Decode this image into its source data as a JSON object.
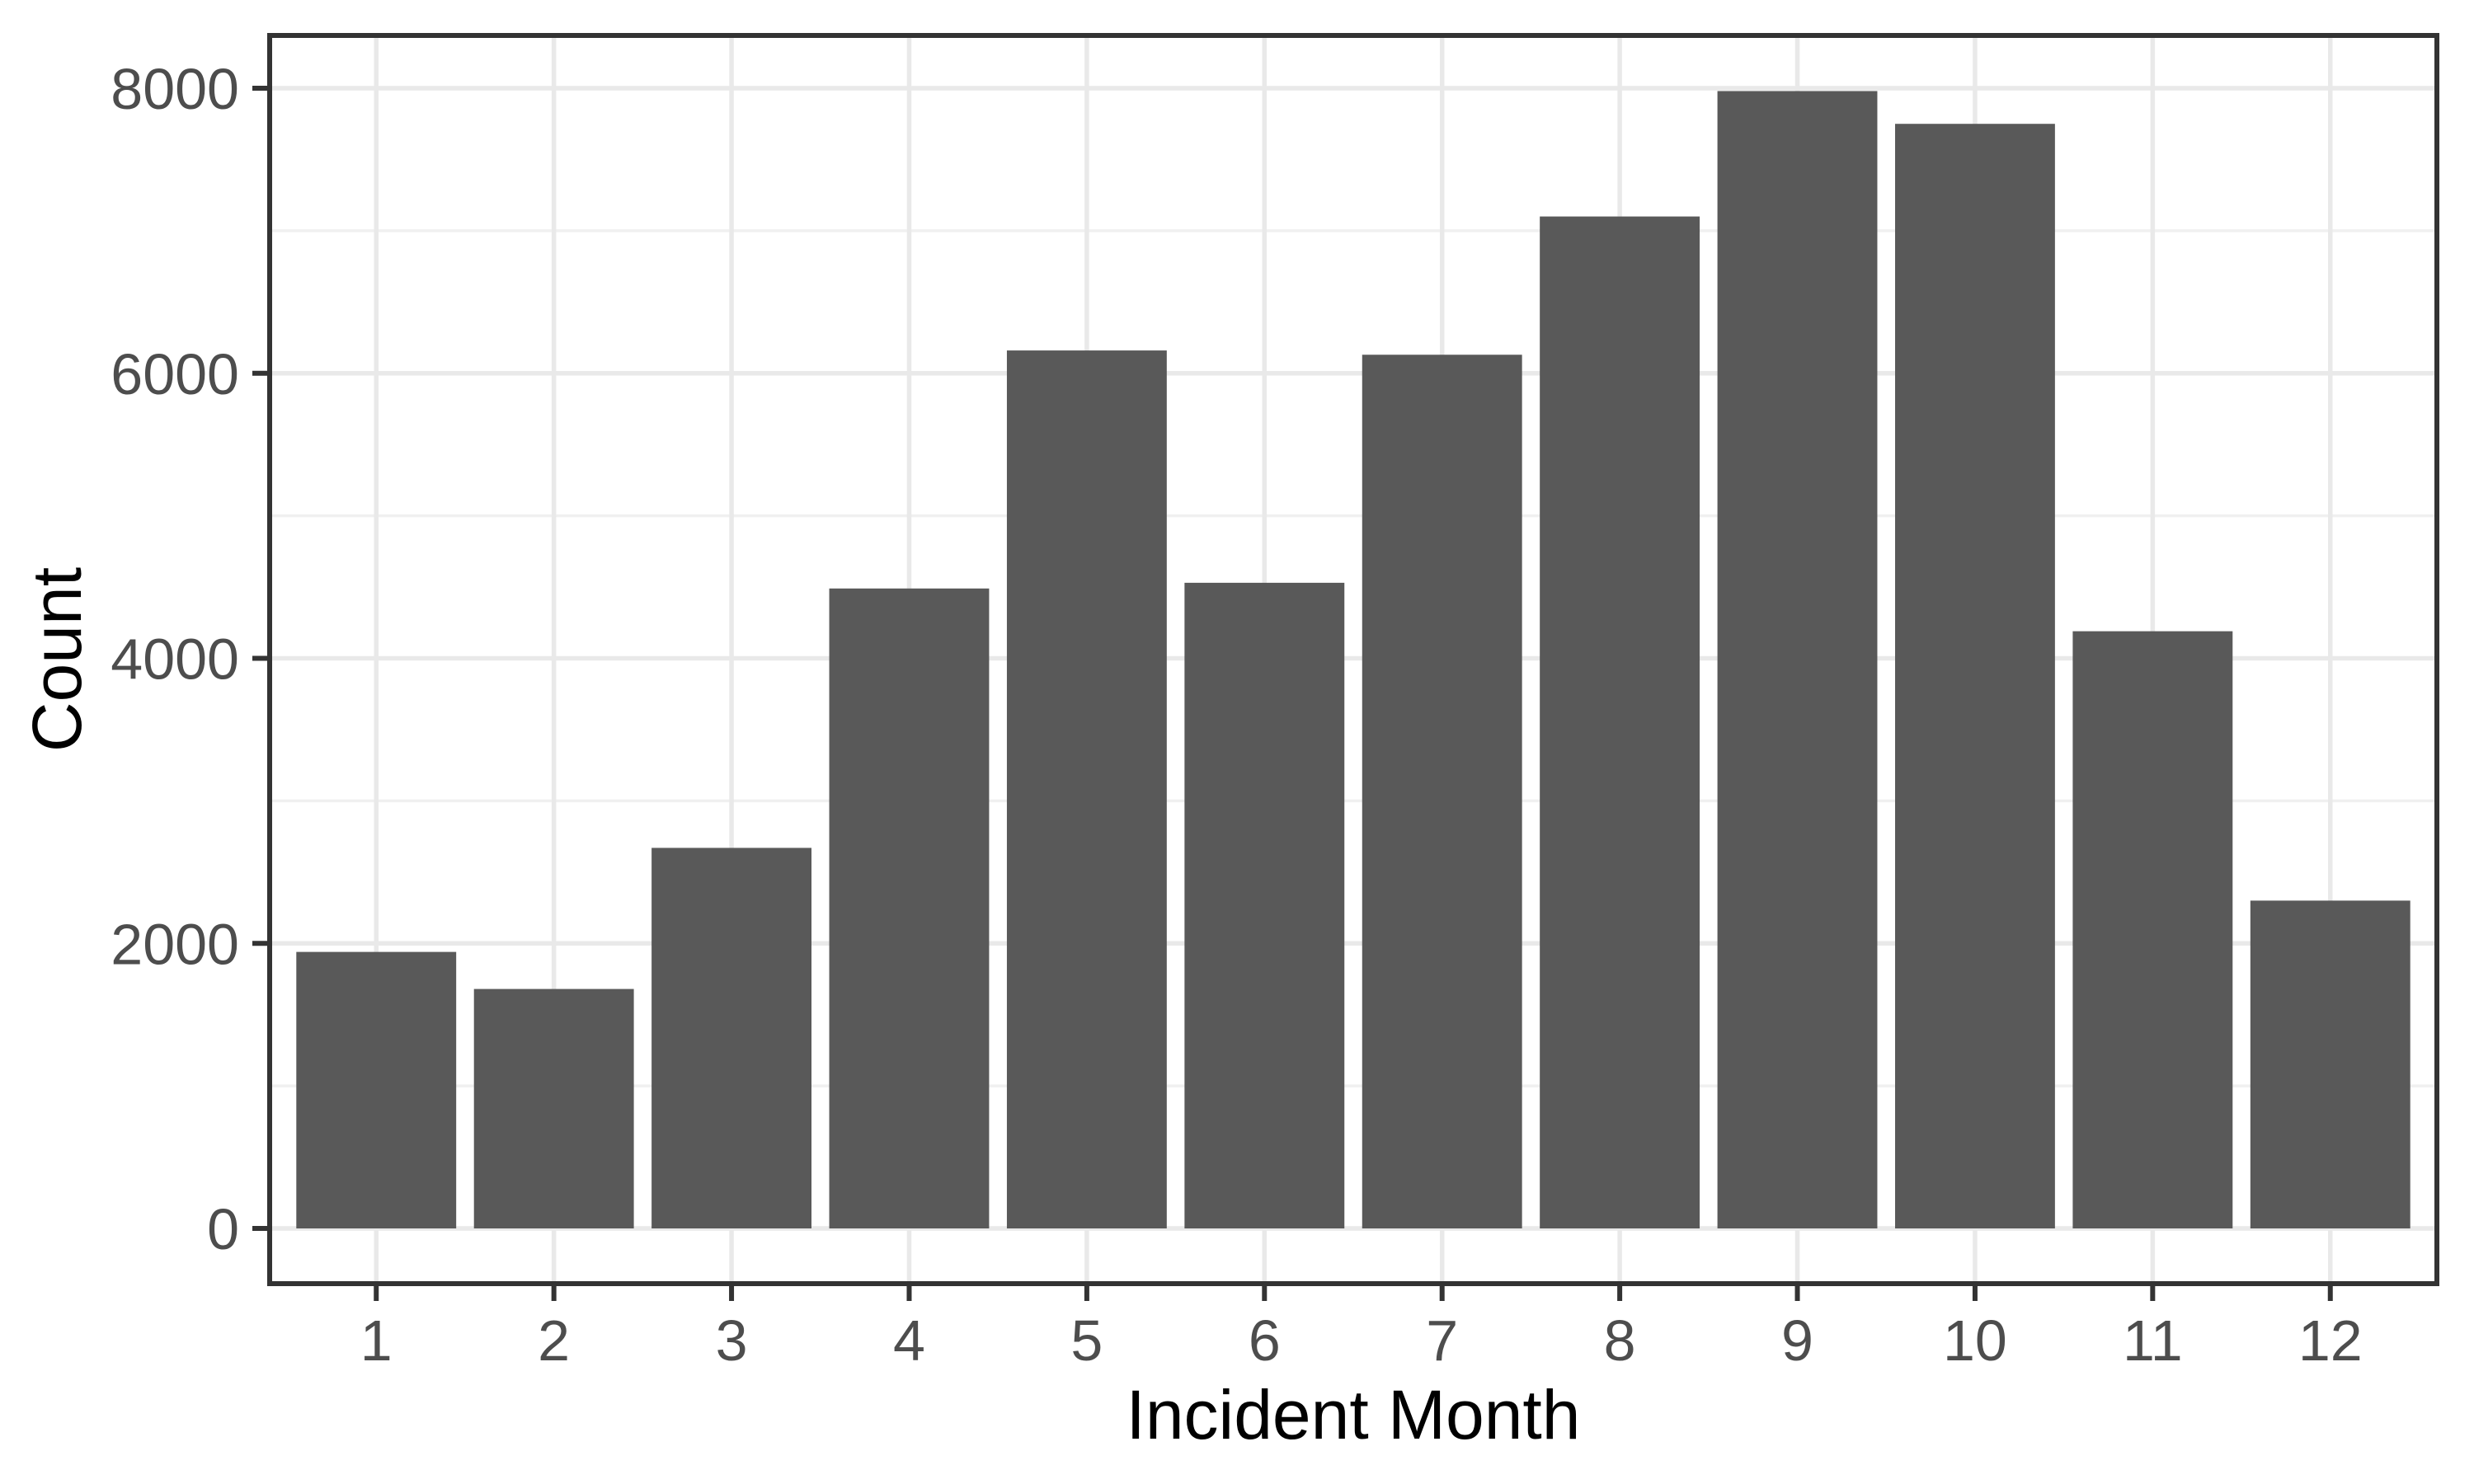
{
  "chart_data": {
    "type": "bar",
    "title": "",
    "xlabel": "Incident Month",
    "ylabel": "Count",
    "categories": [
      "1",
      "2",
      "3",
      "4",
      "5",
      "6",
      "7",
      "8",
      "9",
      "10",
      "11",
      "12"
    ],
    "values": [
      1940,
      1680,
      2670,
      4490,
      6160,
      4530,
      6130,
      7100,
      7980,
      7750,
      4190,
      2300
    ],
    "ylim": [
      0,
      8370
    ],
    "y_major_ticks": [
      0,
      2000,
      4000,
      6000,
      8000
    ],
    "y_minor_ticks": [
      1000,
      3000,
      5000,
      7000
    ],
    "grid": "major-and-minor-horizontal, major-vertical-at-categories",
    "legend_position": "none",
    "style": {
      "bar_fill": "#595959",
      "panel_border_color": "#333333",
      "tick_mark_color": "#333333",
      "major_grid_color": "#E9E9E9",
      "minor_grid_color": "#F0F0F0",
      "axis_text_color": "#4D4D4D",
      "axis_title_color": "#000000",
      "background": "#FFFFFF"
    }
  }
}
